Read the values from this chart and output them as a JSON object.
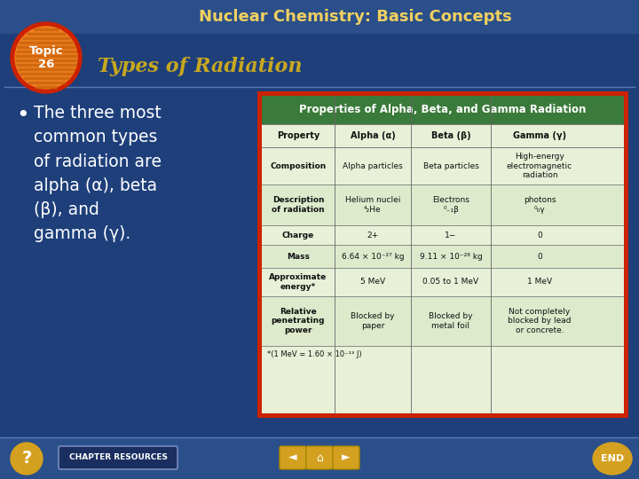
{
  "title": "Nuclear Chemistry: Basic Concepts",
  "subtitle": "Types of Radiation",
  "topic_number": "26",
  "bullet_text": "The three most\ncommon types\nof radiation are\nalpha (α), beta\n(β), and\ngamma (γ).",
  "bg_color": "#1e3f7a",
  "header_bg": "#2a4f8a",
  "title_color": "#f0d060",
  "subtitle_color": "#c8a820",
  "topic_circle_outer": "#cc2200",
  "topic_circle_inner": "#f08020",
  "topic_stripe": "#d06810",
  "topic_text_color": "#ffffff",
  "bullet_text_color": "#ffffff",
  "table_title": "Properties of Alpha, Beta, and Gamma Radiation",
  "table_header_bg": "#3a7a3a",
  "table_header_text": "#ffffff",
  "table_bg": "#e8f0d8",
  "table_border": "#cc2200",
  "table_col_headers": [
    "Property",
    "Alpha (α)",
    "Beta (β)",
    "Gamma (γ)"
  ],
  "table_rows": [
    [
      "Composition",
      "Alpha particles",
      "Beta particles",
      "High-energy\nelectromagnetic\nradiation"
    ],
    [
      "Description\nof radiation",
      "Helium nuclei\n⁴₂He",
      "Electrons\n⁰₋₁β",
      "photons\n⁰₀γ"
    ],
    [
      "Charge",
      "2+",
      "1−",
      "0"
    ],
    [
      "Mass",
      "6.64 × 10⁻²⁷ kg",
      "9.11 × 10⁻²⁸ kg",
      "0"
    ],
    [
      "Approximate\nenergy*",
      "5 MeV",
      "0.05 to 1 MeV",
      "1 MeV"
    ],
    [
      "Relative\npenetrating\npower",
      "Blocked by\npaper",
      "Blocked by\nmetal foil",
      "Not completely\nblocked by lead\nor concrete."
    ]
  ],
  "table_footnote": "*(1 MeV = 1.60 × 10⁻¹³ J)",
  "footer_bg": "#1e3f7a",
  "footer_text": "CHAPTER RESOURCES",
  "footer_text_color": "#ffffff",
  "nav_color": "#d4a020",
  "question_color": "#d4a020",
  "end_color": "#d4a020"
}
